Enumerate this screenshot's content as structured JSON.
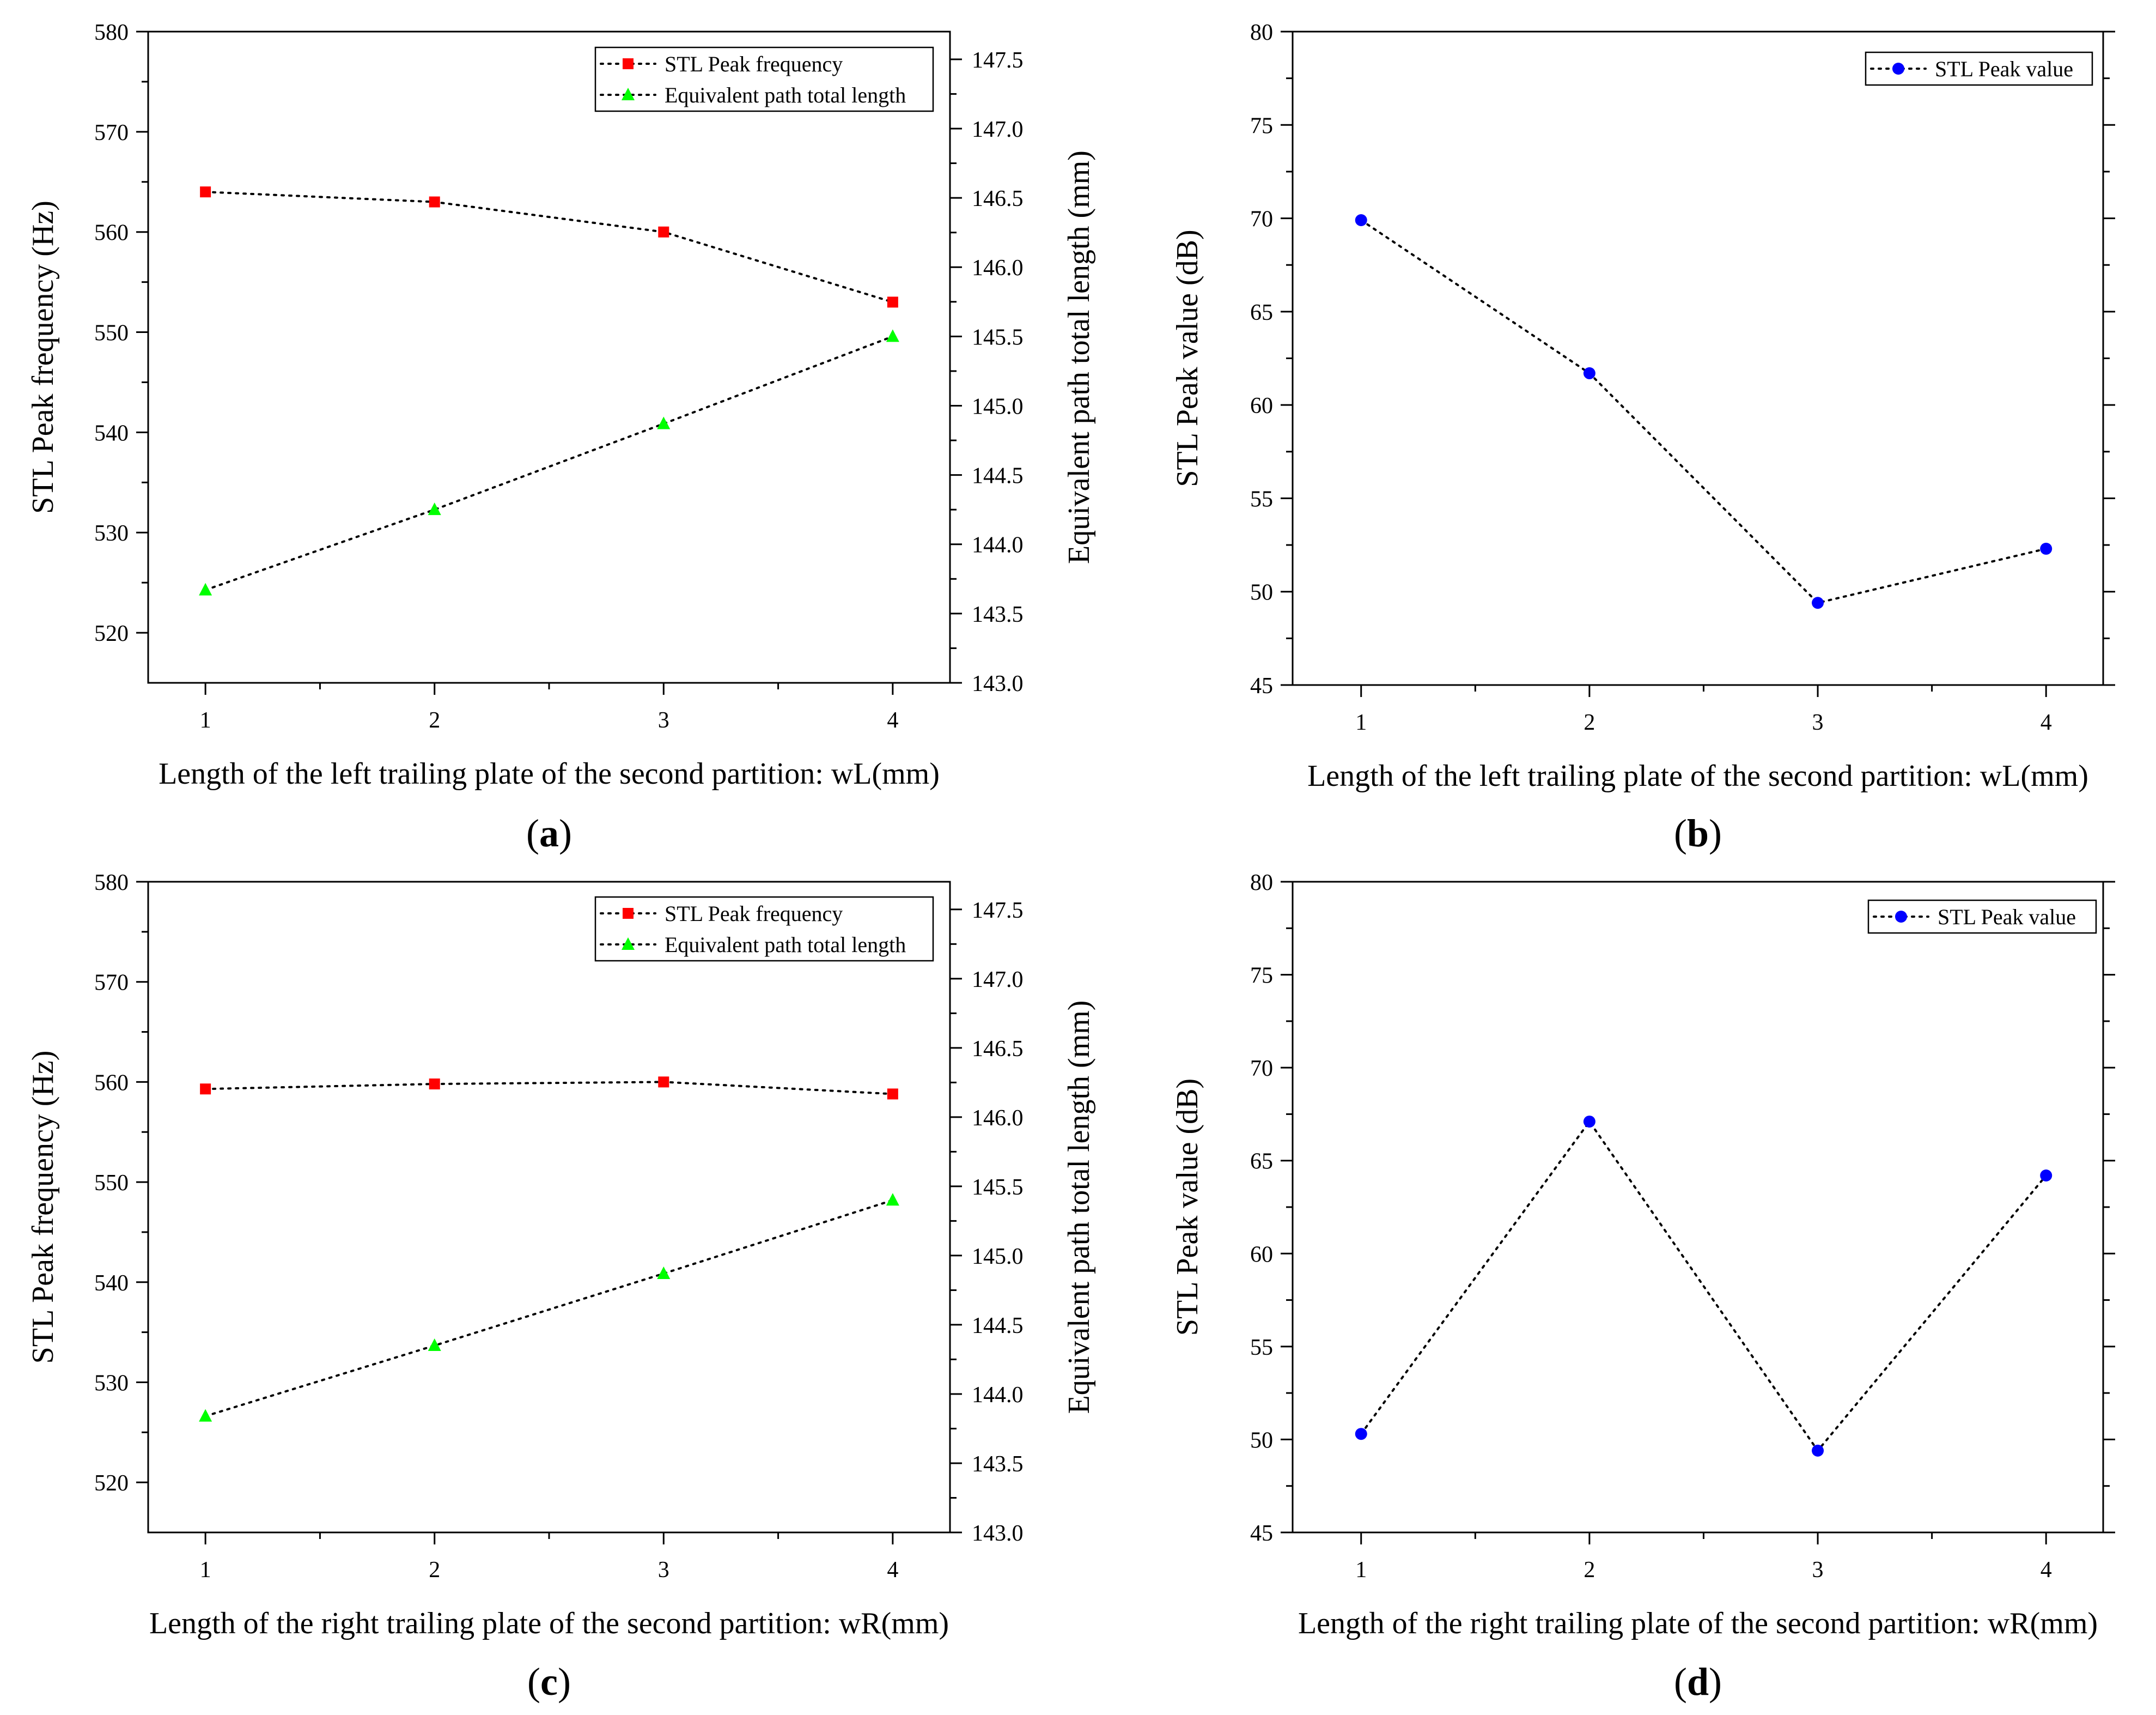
{
  "chart_data": [
    {
      "id": "a",
      "caption": "(a)",
      "type": "line",
      "x": [
        1,
        2,
        3,
        4
      ],
      "xticks": [
        "1",
        "2",
        "3",
        "4"
      ],
      "xlim": [
        0.75,
        4.25
      ],
      "xlabel": "Length of the left trailing plate of the second partition: wL(mm)",
      "ylabel": "STL Peak frequency (Hz)",
      "ylim": [
        515,
        580
      ],
      "yticks": [
        520,
        530,
        540,
        550,
        560,
        570,
        580
      ],
      "ytick_labels": [
        "520",
        "530",
        "540",
        "550",
        "560",
        "570",
        "580"
      ],
      "y2label": "Equivalent path total length (mm)",
      "y2lim": [
        143.0,
        147.7
      ],
      "y2ticks": [
        143.0,
        143.5,
        144.0,
        144.5,
        145.0,
        145.5,
        146.0,
        146.5,
        147.0,
        147.5
      ],
      "y2tick_labels": [
        "143.0",
        "143.5",
        "144.0",
        "144.5",
        "145.0",
        "145.5",
        "146.0",
        "146.5",
        "147.0",
        "147.5"
      ],
      "series": [
        {
          "name": "STL Peak frequency",
          "axis": "left",
          "marker": "square",
          "color": "#ff0000",
          "values": [
            564,
            563,
            560,
            553
          ]
        },
        {
          "name": "Equivalent path total length",
          "axis": "right",
          "marker": "triangle",
          "color": "#00ff00",
          "values": [
            143.67,
            144.25,
            144.87,
            145.5
          ]
        }
      ],
      "legend_position": "top-right"
    },
    {
      "id": "b",
      "caption": "(b)",
      "type": "line",
      "x": [
        1,
        2,
        3,
        4
      ],
      "xticks": [
        "1",
        "2",
        "3",
        "4"
      ],
      "xlim": [
        0.7,
        4.25
      ],
      "xlabel": "Length of the left trailing plate of the second partition: wL(mm)",
      "ylabel": "STL Peak value (dB)",
      "ylim": [
        45,
        80
      ],
      "yticks": [
        45,
        50,
        55,
        60,
        65,
        70,
        75,
        80
      ],
      "ytick_labels": [
        "45",
        "50",
        "55",
        "60",
        "65",
        "70",
        "75",
        "80"
      ],
      "series": [
        {
          "name": "STL Peak value",
          "axis": "left",
          "marker": "circle",
          "color": "#0000ff",
          "values": [
            69.9,
            61.7,
            49.4,
            52.3
          ]
        }
      ],
      "legend_position": "top-right"
    },
    {
      "id": "c",
      "caption": "(c)",
      "type": "line",
      "x": [
        1,
        2,
        3,
        4
      ],
      "xticks": [
        "1",
        "2",
        "3",
        "4"
      ],
      "xlim": [
        0.75,
        4.25
      ],
      "xlabel": "Length of the right trailing plate of the second partition: wR(mm)",
      "ylabel": "STL Peak frequency (Hz)",
      "ylim": [
        515,
        580
      ],
      "yticks": [
        520,
        530,
        540,
        550,
        560,
        570,
        580
      ],
      "ytick_labels": [
        "520",
        "530",
        "540",
        "550",
        "560",
        "570",
        "580"
      ],
      "y2label": "Equivalent path total length (mm)",
      "y2lim": [
        143.0,
        147.7
      ],
      "y2ticks": [
        143.0,
        143.5,
        144.0,
        144.5,
        145.0,
        145.5,
        146.0,
        146.5,
        147.0,
        147.5
      ],
      "y2tick_labels": [
        "143.0",
        "143.5",
        "144.0",
        "144.5",
        "145.0",
        "145.5",
        "146.0",
        "146.5",
        "147.0",
        "147.5"
      ],
      "series": [
        {
          "name": "STL Peak frequency",
          "axis": "left",
          "marker": "square",
          "color": "#ff0000",
          "values": [
            559.3,
            559.8,
            560.0,
            558.8
          ]
        },
        {
          "name": "Equivalent path total length",
          "axis": "right",
          "marker": "triangle",
          "color": "#00ff00",
          "values": [
            143.84,
            144.35,
            144.87,
            145.4
          ]
        }
      ],
      "legend_position": "top-right"
    },
    {
      "id": "d",
      "caption": "(d)",
      "type": "line",
      "x": [
        1,
        2,
        3,
        4
      ],
      "xticks": [
        "1",
        "2",
        "3",
        "4"
      ],
      "xlim": [
        0.7,
        4.25
      ],
      "xlabel": "Length of the right trailing plate of the second partition: wR(mm)",
      "ylabel": "STL Peak value (dB)",
      "ylim": [
        45,
        80
      ],
      "yticks": [
        45,
        50,
        55,
        60,
        65,
        70,
        75,
        80
      ],
      "ytick_labels": [
        "45",
        "50",
        "55",
        "60",
        "65",
        "70",
        "75",
        "80"
      ],
      "series": [
        {
          "name": "STL Peak value",
          "axis": "left",
          "marker": "circle",
          "color": "#0000ff",
          "values": [
            50.3,
            67.1,
            49.4,
            64.2
          ]
        }
      ],
      "legend_position": "top-right"
    }
  ]
}
